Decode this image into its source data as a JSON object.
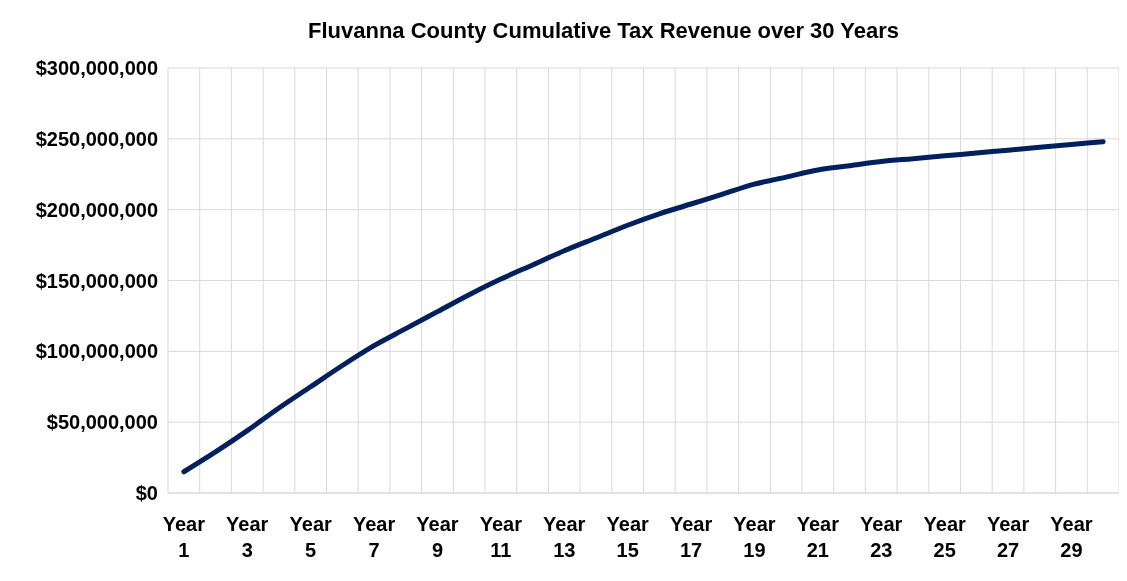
{
  "chart_data": {
    "type": "line",
    "title": "Fluvanna County Cumulative Tax Revenue over 30 Years",
    "categories": [
      "Year 1",
      null,
      "Year 3",
      null,
      "Year 5",
      null,
      "Year 7",
      null,
      "Year 9",
      null,
      "Year 11",
      null,
      "Year 13",
      null,
      "Year 15",
      null,
      "Year 17",
      null,
      "Year 19",
      null,
      "Year 21",
      null,
      "Year 23",
      null,
      "Year 25",
      null,
      "Year 27",
      null,
      "Year 29",
      null
    ],
    "series": [
      {
        "color": "#002060",
        "values": [
          15000000,
          29000000,
          44000000,
          60000000,
          75000000,
          90000000,
          104000000,
          116000000,
          128000000,
          140000000,
          151000000,
          161000000,
          171000000,
          180000000,
          189000000,
          197000000,
          204000000,
          211000000,
          218000000,
          223000000,
          228000000,
          231000000,
          234000000,
          236000000,
          238000000,
          240000000,
          242000000,
          244000000,
          246000000,
          248000000
        ]
      }
    ],
    "ylim": [
      0,
      300000000
    ],
    "yticks": [
      {
        "value": 0,
        "label": "$0"
      },
      {
        "value": 50000000,
        "label": "$50,000,000"
      },
      {
        "value": 100000000,
        "label": "$100,000,000"
      },
      {
        "value": 150000000,
        "label": "$150,000,000"
      },
      {
        "value": 200000000,
        "label": "$200,000,000"
      },
      {
        "value": 250000000,
        "label": "$250,000,000"
      },
      {
        "value": 300000000,
        "label": "$300,000,000"
      }
    ],
    "grid": true,
    "marker": "none",
    "line_style": "solid"
  }
}
